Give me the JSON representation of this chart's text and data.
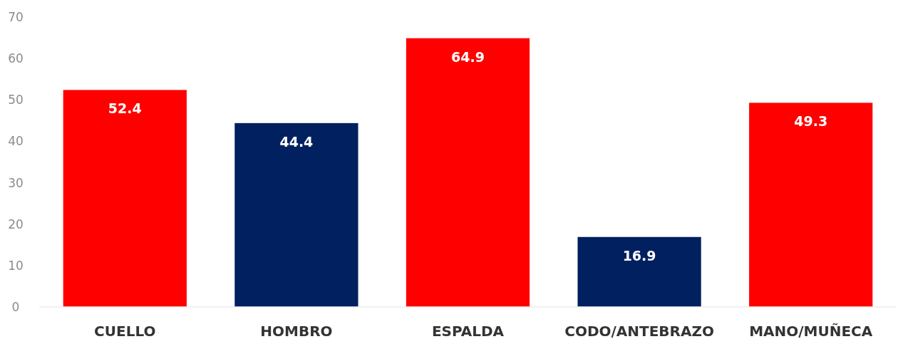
{
  "chart_data": {
    "type": "bar",
    "categories": [
      "CUELLO",
      "HOMBRO",
      "ESPALDA",
      "CODO/ANTEBRAZO",
      "MANO/MUÑECA"
    ],
    "values": [
      52.4,
      44.4,
      64.9,
      16.9,
      49.3
    ],
    "colors": [
      "#ff0000",
      "#002060",
      "#ff0000",
      "#002060",
      "#ff0000"
    ],
    "ylim": [
      0,
      70
    ],
    "yticks": [
      0,
      10,
      20,
      30,
      40,
      50,
      60,
      70
    ],
    "grid": false,
    "data_labels": true
  }
}
